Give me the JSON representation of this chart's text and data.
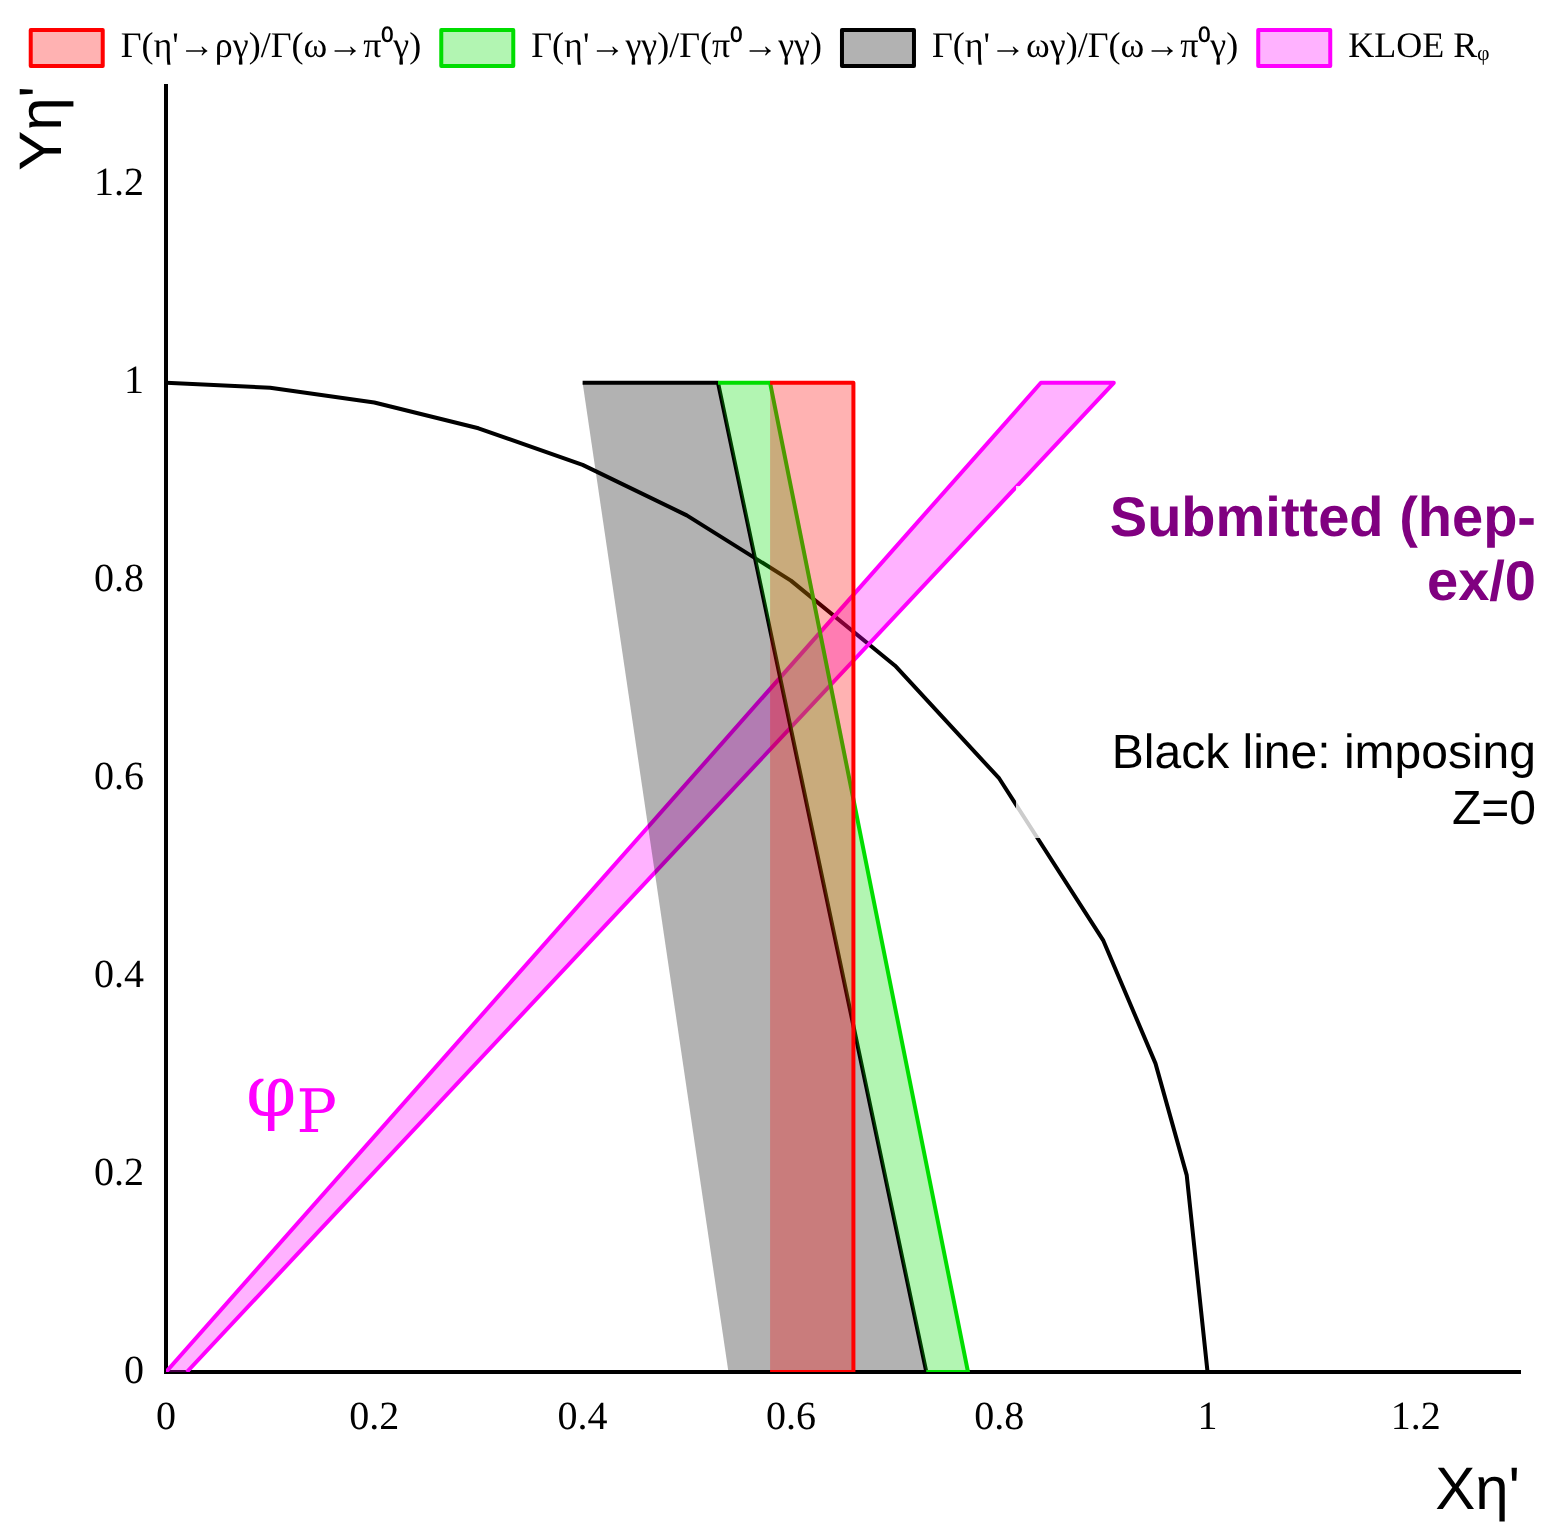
{
  "chart_data": {
    "type": "area",
    "xlabel": "Xη'",
    "ylabel": "Yη'",
    "series": [
      {
        "name": "Γ(η'→ργ)/Γ(ω→π⁰γ)",
        "color": "#ff0000",
        "x": [
          0.58,
          0.66,
          0.66,
          0.58
        ],
        "values": [
          0,
          0,
          1,
          1
        ]
      },
      {
        "name": "Γ(η'→γγ)/Γ(π⁰→γγ)",
        "color": "#00dd00",
        "x": [
          0.53,
          0.58,
          0.77,
          0.73
        ],
        "values": [
          1,
          1,
          0,
          0
        ]
      },
      {
        "name": "Γ(η'→ωγ)/Γ(ω→π⁰γ)",
        "color": "#000000",
        "x": [
          0.4,
          0.53,
          0.73,
          0.54
        ],
        "values": [
          1,
          1,
          0,
          0
        ]
      },
      {
        "name": "KLOE Rᵩ",
        "color": "#ff00ff",
        "x": [
          0,
          0.84,
          0.91,
          0.02
        ],
        "values": [
          0,
          1,
          1,
          0
        ]
      },
      {
        "type": "line",
        "color": "#000000",
        "x": [
          0,
          0.1,
          0.2,
          0.3,
          0.4,
          0.5,
          0.6,
          0.7,
          0.8,
          0.9,
          0.95,
          0.98,
          1
        ],
        "values": [
          1,
          0.995,
          0.98,
          0.954,
          0.917,
          0.866,
          0.8,
          0.714,
          0.6,
          0.436,
          0.312,
          0.199,
          0
        ]
      }
    ],
    "xlim": [
      0,
      1.3
    ],
    "ylim": [
      0,
      1.3
    ],
    "xticks": [
      0,
      0.2,
      0.4,
      0.6,
      0.8,
      1,
      1.2
    ],
    "yticks": [
      0,
      0.2,
      0.4,
      0.6,
      0.8,
      1,
      1.2
    ],
    "grid": false,
    "legend": "top",
    "marker": "none",
    "line_style": "solid",
    "annotations": [
      "φ$_{P}$",
      "Submitted (hep-ex/0",
      "Black line: imposing Z=0"
    ]
  }
}
